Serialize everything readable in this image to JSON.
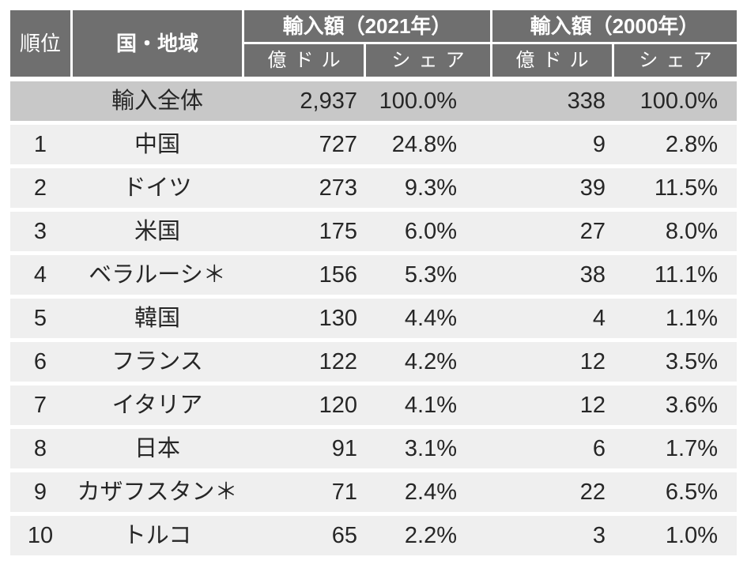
{
  "table": {
    "title_semantic": "country-import-ranking-table",
    "headers": {
      "rank": "順位",
      "country": "国・地域",
      "group_2021": "輸入額（2021年）",
      "group_2000": "輸入額（2000年）",
      "sub": [
        "億ドル",
        "シェア",
        "億ドル",
        "シェア"
      ]
    },
    "total_row": {
      "rank": "",
      "country": "輸入全体",
      "amount_2021": "2,937",
      "share_2021": "100.0%",
      "amount_2000": "338",
      "share_2000": "100.0%"
    },
    "rows": [
      {
        "rank": "1",
        "country": "中国",
        "amount_2021": "727",
        "share_2021": "24.8%",
        "amount_2000": "9",
        "share_2000": "2.8%"
      },
      {
        "rank": "2",
        "country": "ドイツ",
        "amount_2021": "273",
        "share_2021": "9.3%",
        "amount_2000": "39",
        "share_2000": "11.5%"
      },
      {
        "rank": "3",
        "country": "米国",
        "amount_2021": "175",
        "share_2021": "6.0%",
        "amount_2000": "27",
        "share_2000": "8.0%"
      },
      {
        "rank": "4",
        "country": "ベラルーシ＊",
        "amount_2021": "156",
        "share_2021": "5.3%",
        "amount_2000": "38",
        "share_2000": "11.1%"
      },
      {
        "rank": "5",
        "country": "韓国",
        "amount_2021": "130",
        "share_2021": "4.4%",
        "amount_2000": "4",
        "share_2000": "1.1%"
      },
      {
        "rank": "6",
        "country": "フランス",
        "amount_2021": "122",
        "share_2021": "4.2%",
        "amount_2000": "12",
        "share_2000": "3.5%"
      },
      {
        "rank": "7",
        "country": "イタリア",
        "amount_2021": "120",
        "share_2021": "4.1%",
        "amount_2000": "12",
        "share_2000": "3.6%"
      },
      {
        "rank": "8",
        "country": "日本",
        "amount_2021": "91",
        "share_2021": "3.1%",
        "amount_2000": "6",
        "share_2000": "1.7%"
      },
      {
        "rank": "9",
        "country": "カザフスタン＊",
        "amount_2021": "71",
        "share_2021": "2.4%",
        "amount_2000": "22",
        "share_2000": "6.5%"
      },
      {
        "rank": "10",
        "country": "トルコ",
        "amount_2021": "65",
        "share_2021": "2.2%",
        "amount_2000": "3",
        "share_2000": "1.0%"
      }
    ],
    "colors": {
      "header_bg": "#6f6f6f",
      "header_text": "#ffffff",
      "total_row_bg": "#c8c8c8",
      "data_row_bg": "#efefef",
      "body_text": "#262626",
      "grid_line": "#ffffff"
    }
  }
}
